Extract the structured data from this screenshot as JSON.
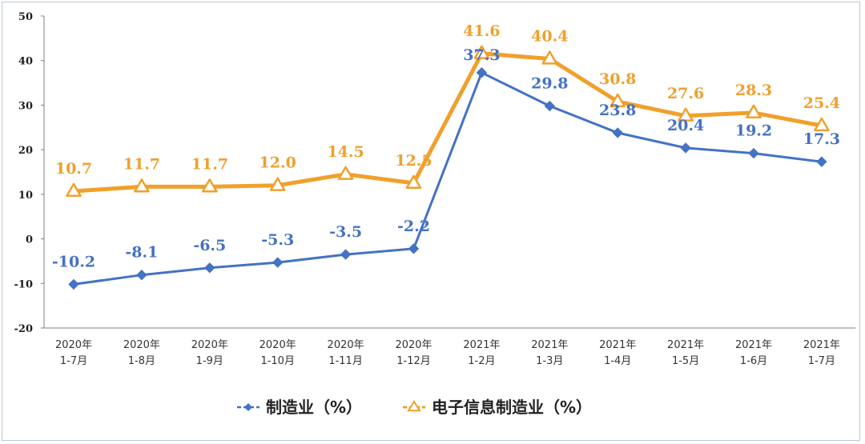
{
  "chart_data": {
    "type": "line",
    "categories": [
      [
        "2020年",
        "1-7月"
      ],
      [
        "2020年",
        "1-8月"
      ],
      [
        "2020年",
        "1-9月"
      ],
      [
        "2020年",
        "1-10月"
      ],
      [
        "2020年",
        "1-11月"
      ],
      [
        "2020年",
        "1-12月"
      ],
      [
        "2021年",
        "1-2月"
      ],
      [
        "2021年",
        "1-3月"
      ],
      [
        "2021年",
        "1-4月"
      ],
      [
        "2021年",
        "1-5月"
      ],
      [
        "2021年",
        "1-6月"
      ],
      [
        "2021年",
        "1-7月"
      ]
    ],
    "series": [
      {
        "name": "制造业（%）",
        "color": "#4472c4",
        "marker": "diamond",
        "values": [
          -10.2,
          -8.1,
          -6.5,
          -5.3,
          -3.5,
          -2.2,
          37.3,
          29.8,
          23.8,
          20.4,
          19.2,
          17.3
        ],
        "labels": [
          "-10.2",
          "-8.1",
          "-6.5",
          "-5.3",
          "-3.5",
          "-2.2",
          "37.3",
          "29.8",
          "23.8",
          "20.4",
          "19.2",
          "17.3"
        ]
      },
      {
        "name": "电子信息制造业（%）",
        "color": "#f0a02c",
        "marker": "triangle",
        "values": [
          10.7,
          11.7,
          11.7,
          12.0,
          14.5,
          12.5,
          41.6,
          40.4,
          30.8,
          27.6,
          28.3,
          25.4
        ],
        "labels": [
          "10.7",
          "11.7",
          "11.7",
          "12.0",
          "14.5",
          "12.5",
          "41.6",
          "40.4",
          "30.8",
          "27.6",
          "28.3",
          "25.4"
        ]
      }
    ],
    "y_ticks": [
      -20,
      -10,
      0,
      10,
      20,
      30,
      40,
      50
    ],
    "ylim": [
      -20,
      50
    ],
    "grid": false,
    "legend_position": "bottom"
  }
}
